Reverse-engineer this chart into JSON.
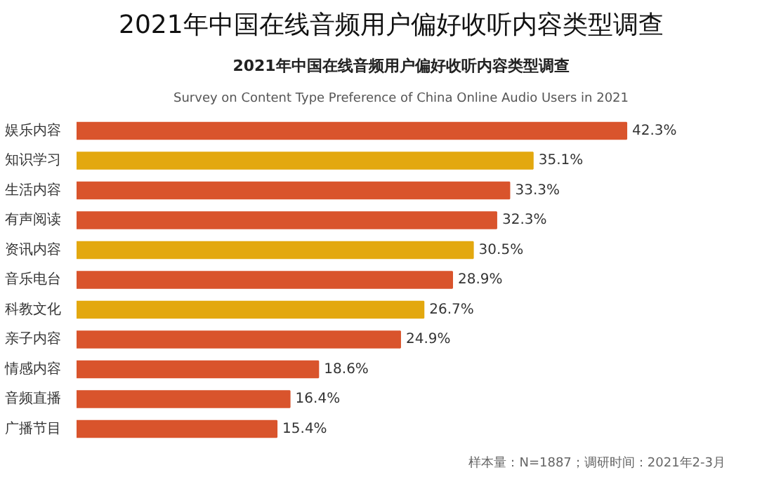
{
  "chart_data": {
    "type": "bar",
    "orientation": "horizontal",
    "title": "2021年中国在线音频用户偏好收听内容类型调查",
    "subtitle": "2021年中国在线音频用户偏好收听内容类型调查",
    "annotations": [
      "Survey on Content Type Preference of China Online Audio Users in 2021",
      "样本量：N=1887；调研时间：2021年2-3月"
    ],
    "categories": [
      "娱乐内容",
      "知识学习",
      "生活内容",
      "有声阅读",
      "资讯内容",
      "音乐电台",
      "科教文化",
      "亲子内容",
      "情感内容",
      "音频直播",
      "广播节目"
    ],
    "values": [
      42.3,
      35.1,
      33.3,
      32.3,
      30.5,
      28.9,
      26.7,
      24.9,
      18.6,
      16.4,
      15.4
    ],
    "colors": [
      "#d9542c",
      "#e3a80f",
      "#d9542c",
      "#d9542c",
      "#e3a80f",
      "#d9542c",
      "#e3a80f",
      "#d9542c",
      "#d9542c",
      "#d9542c",
      "#d9542c"
    ],
    "value_labels": [
      "42.3%",
      "35.1%",
      "33.3%",
      "32.3%",
      "30.5%",
      "28.9%",
      "26.7%",
      "24.9%",
      "18.6%",
      "16.4%",
      "15.4%"
    ]
  }
}
